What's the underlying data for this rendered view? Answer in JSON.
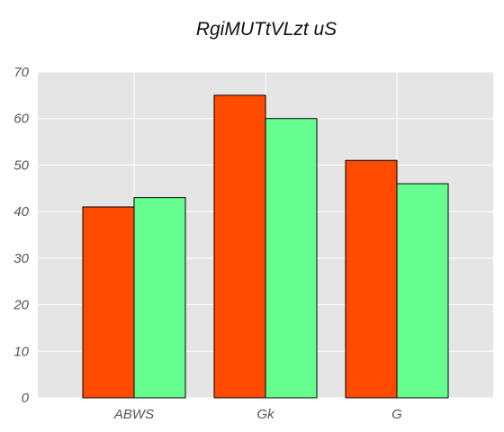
{
  "chart_data": {
    "type": "bar",
    "title": "RgiMUTtVLzt uS",
    "xlabel": "",
    "ylabel": "",
    "categories": [
      "ABWS",
      "Gk",
      "G"
    ],
    "series": [
      {
        "values": [
          41,
          65,
          51
        ],
        "color": "#ff4a00"
      },
      {
        "values": [
          43,
          60,
          46
        ],
        "color": "#66ff8f"
      }
    ],
    "ylim": [
      0,
      70
    ],
    "yticks": [
      0,
      10,
      20,
      30,
      40,
      50,
      60,
      70
    ],
    "grid": true,
    "plot_background": "#e5e5e5",
    "grid_color": "#ffffff"
  }
}
